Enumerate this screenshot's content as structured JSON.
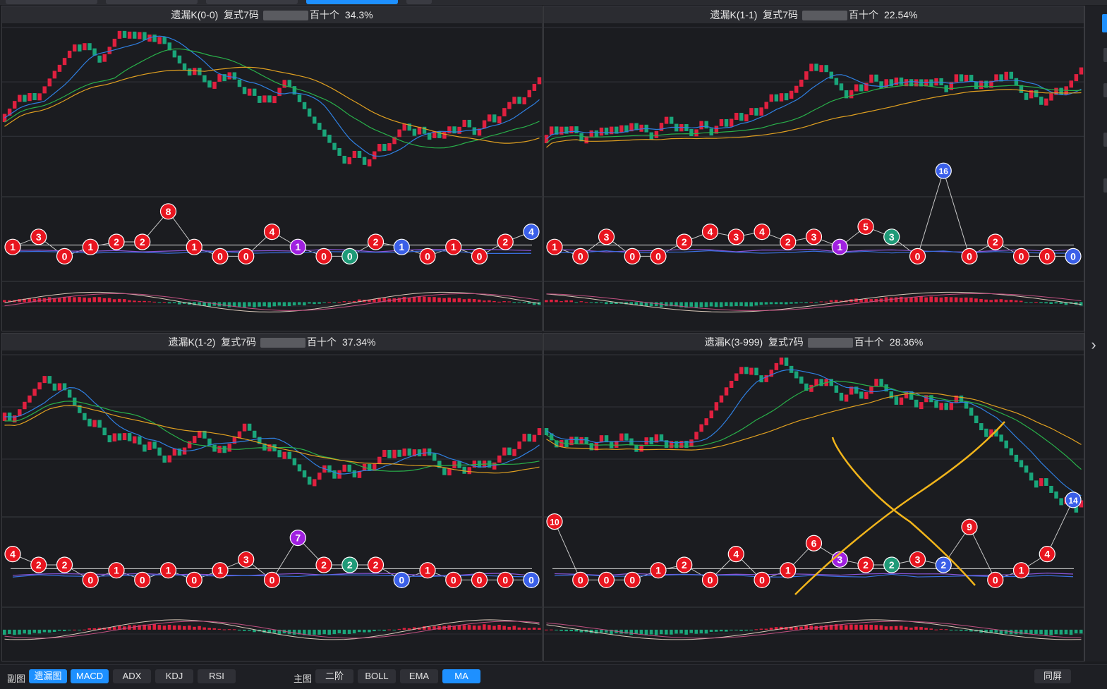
{
  "colors": {
    "up": "#e0203f",
    "down": "#1aa57a",
    "ma_fast": "#2f7fe0",
    "ma_mid": "#29b04a",
    "ma_slow": "#e0a020",
    "bg": "#1b1c20",
    "accent": "#1e90ff",
    "annotation": "#f2b51b"
  },
  "panels": [
    {
      "id": "p00",
      "title": "遗漏K(0-0)",
      "type": "复式7码",
      "digits": "百十个",
      "pct": "34.3%"
    },
    {
      "id": "p11",
      "title": "遗漏K(1-1)",
      "type": "复式7码",
      "digits": "百十个",
      "pct": "22.54%"
    },
    {
      "id": "p12",
      "title": "遗漏K(1-2)",
      "type": "复式7码",
      "digits": "百十个",
      "pct": "37.34%"
    },
    {
      "id": "p3999",
      "title": "遗漏K(3-999)",
      "type": "复式7码",
      "digits": "百十个",
      "pct": "28.36%"
    }
  ],
  "miss_sequences": {
    "p00": [
      "1",
      "3",
      "0",
      "1",
      "2",
      "2",
      "8",
      "1",
      "0",
      "0",
      "4",
      "1",
      "0",
      "0",
      "2",
      "1",
      "0",
      "1",
      "0",
      "2",
      "4"
    ],
    "p11": [
      "1",
      "0",
      "3",
      "0",
      "0",
      "2",
      "4",
      "3",
      "4",
      "2",
      "3",
      "1",
      "5",
      "3",
      "0",
      "16",
      "0",
      "2",
      "0",
      "0",
      "0"
    ],
    "p12": [
      "4",
      "2",
      "2",
      "0",
      "1",
      "0",
      "1",
      "0",
      "1",
      "3",
      "0",
      "7",
      "2",
      "2",
      "2",
      "0",
      "1",
      "0",
      "0",
      "0",
      "0"
    ],
    "p3999": [
      "10",
      "0",
      "0",
      "0",
      "1",
      "2",
      "0",
      "4",
      "0",
      "1",
      "6",
      "3",
      "2",
      "2",
      "3",
      "2",
      "9",
      "0",
      "1",
      "4",
      "14"
    ]
  },
  "bottom": {
    "sub_label": "副图",
    "sub_buttons": [
      "遗漏图",
      "MACD",
      "ADX",
      "KDJ",
      "RSI"
    ],
    "main_label": "主图",
    "main_buttons": [
      "二阶",
      "BOLL",
      "EMA",
      "MA"
    ],
    "right_button": "同屏"
  },
  "sidebar": {
    "chevron": "›"
  }
}
